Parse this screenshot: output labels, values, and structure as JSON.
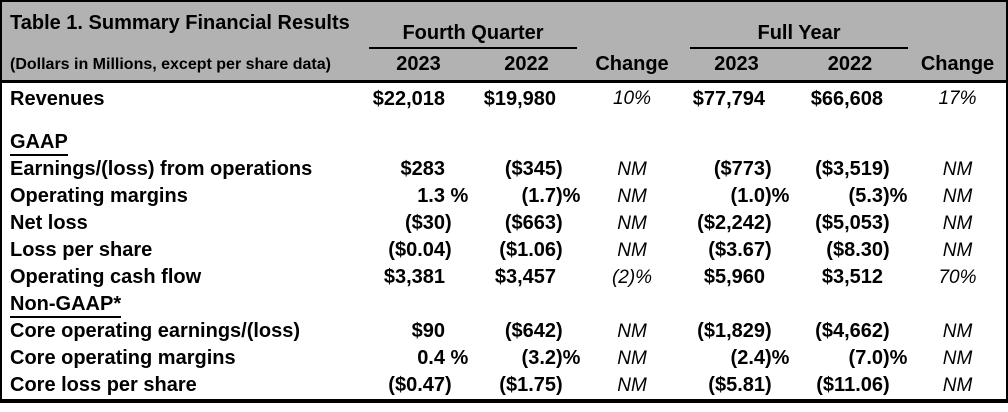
{
  "table": {
    "title": "Table 1. Summary Financial Results",
    "subtitle": "(Dollars in Millions, except per share data)",
    "column_groups": [
      {
        "label": "Fourth Quarter",
        "years": [
          "2023",
          "2022"
        ],
        "change_label": "Change"
      },
      {
        "label": "Full Year",
        "years": [
          "2023",
          "2022"
        ],
        "change_label": "Change"
      }
    ],
    "column_keys": [
      "fq-2023",
      "fq-2022",
      "fq-change",
      "fy-2023",
      "fy-2022",
      "fy-change"
    ],
    "rows": [
      {
        "type": "data",
        "label": "Revenues",
        "values": [
          "$22,018",
          "$19,980",
          "10%",
          "$77,794",
          "$66,608",
          "17%"
        ]
      },
      {
        "type": "spacer"
      },
      {
        "type": "section",
        "label": "GAAP"
      },
      {
        "type": "data",
        "label": "Earnings/(loss) from operations",
        "values": [
          "$283",
          "($345)",
          "NM",
          "($773)",
          "($3,519)",
          "NM"
        ]
      },
      {
        "type": "data",
        "label": "Operating margins",
        "values": [
          "1.3 %",
          "(1.7)%",
          "NM",
          "(1.0)%",
          "(5.3)%",
          "NM"
        ]
      },
      {
        "type": "data",
        "label": "Net loss",
        "values": [
          "($30)",
          "($663)",
          "NM",
          "($2,242)",
          "($5,053)",
          "NM"
        ]
      },
      {
        "type": "data",
        "label": "Loss per share",
        "values": [
          "($0.04)",
          "($1.06)",
          "NM",
          "($3.67)",
          "($8.30)",
          "NM"
        ]
      },
      {
        "type": "data",
        "label": "Operating cash flow",
        "values": [
          "$3,381",
          "$3,457",
          "(2)%",
          "$5,960",
          "$3,512",
          "70%"
        ]
      },
      {
        "type": "section",
        "label": "Non-GAAP*"
      },
      {
        "type": "data",
        "label": "Core operating earnings/(loss)",
        "values": [
          "$90",
          "($642)",
          "NM",
          "($1,829)",
          "($4,662)",
          "NM"
        ]
      },
      {
        "type": "data",
        "label": "Core operating margins",
        "values": [
          "0.4 %",
          "(3.2)%",
          "NM",
          "(2.4)%",
          "(7.0)%",
          "NM"
        ]
      },
      {
        "type": "data",
        "label": "Core loss per share",
        "values": [
          "($0.47)",
          "($1.75)",
          "NM",
          "($5.81)",
          "($11.06)",
          "NM"
        ]
      }
    ],
    "colors": {
      "header_bg": "#b2b2b2",
      "border": "#000000",
      "text": "#000000"
    }
  }
}
